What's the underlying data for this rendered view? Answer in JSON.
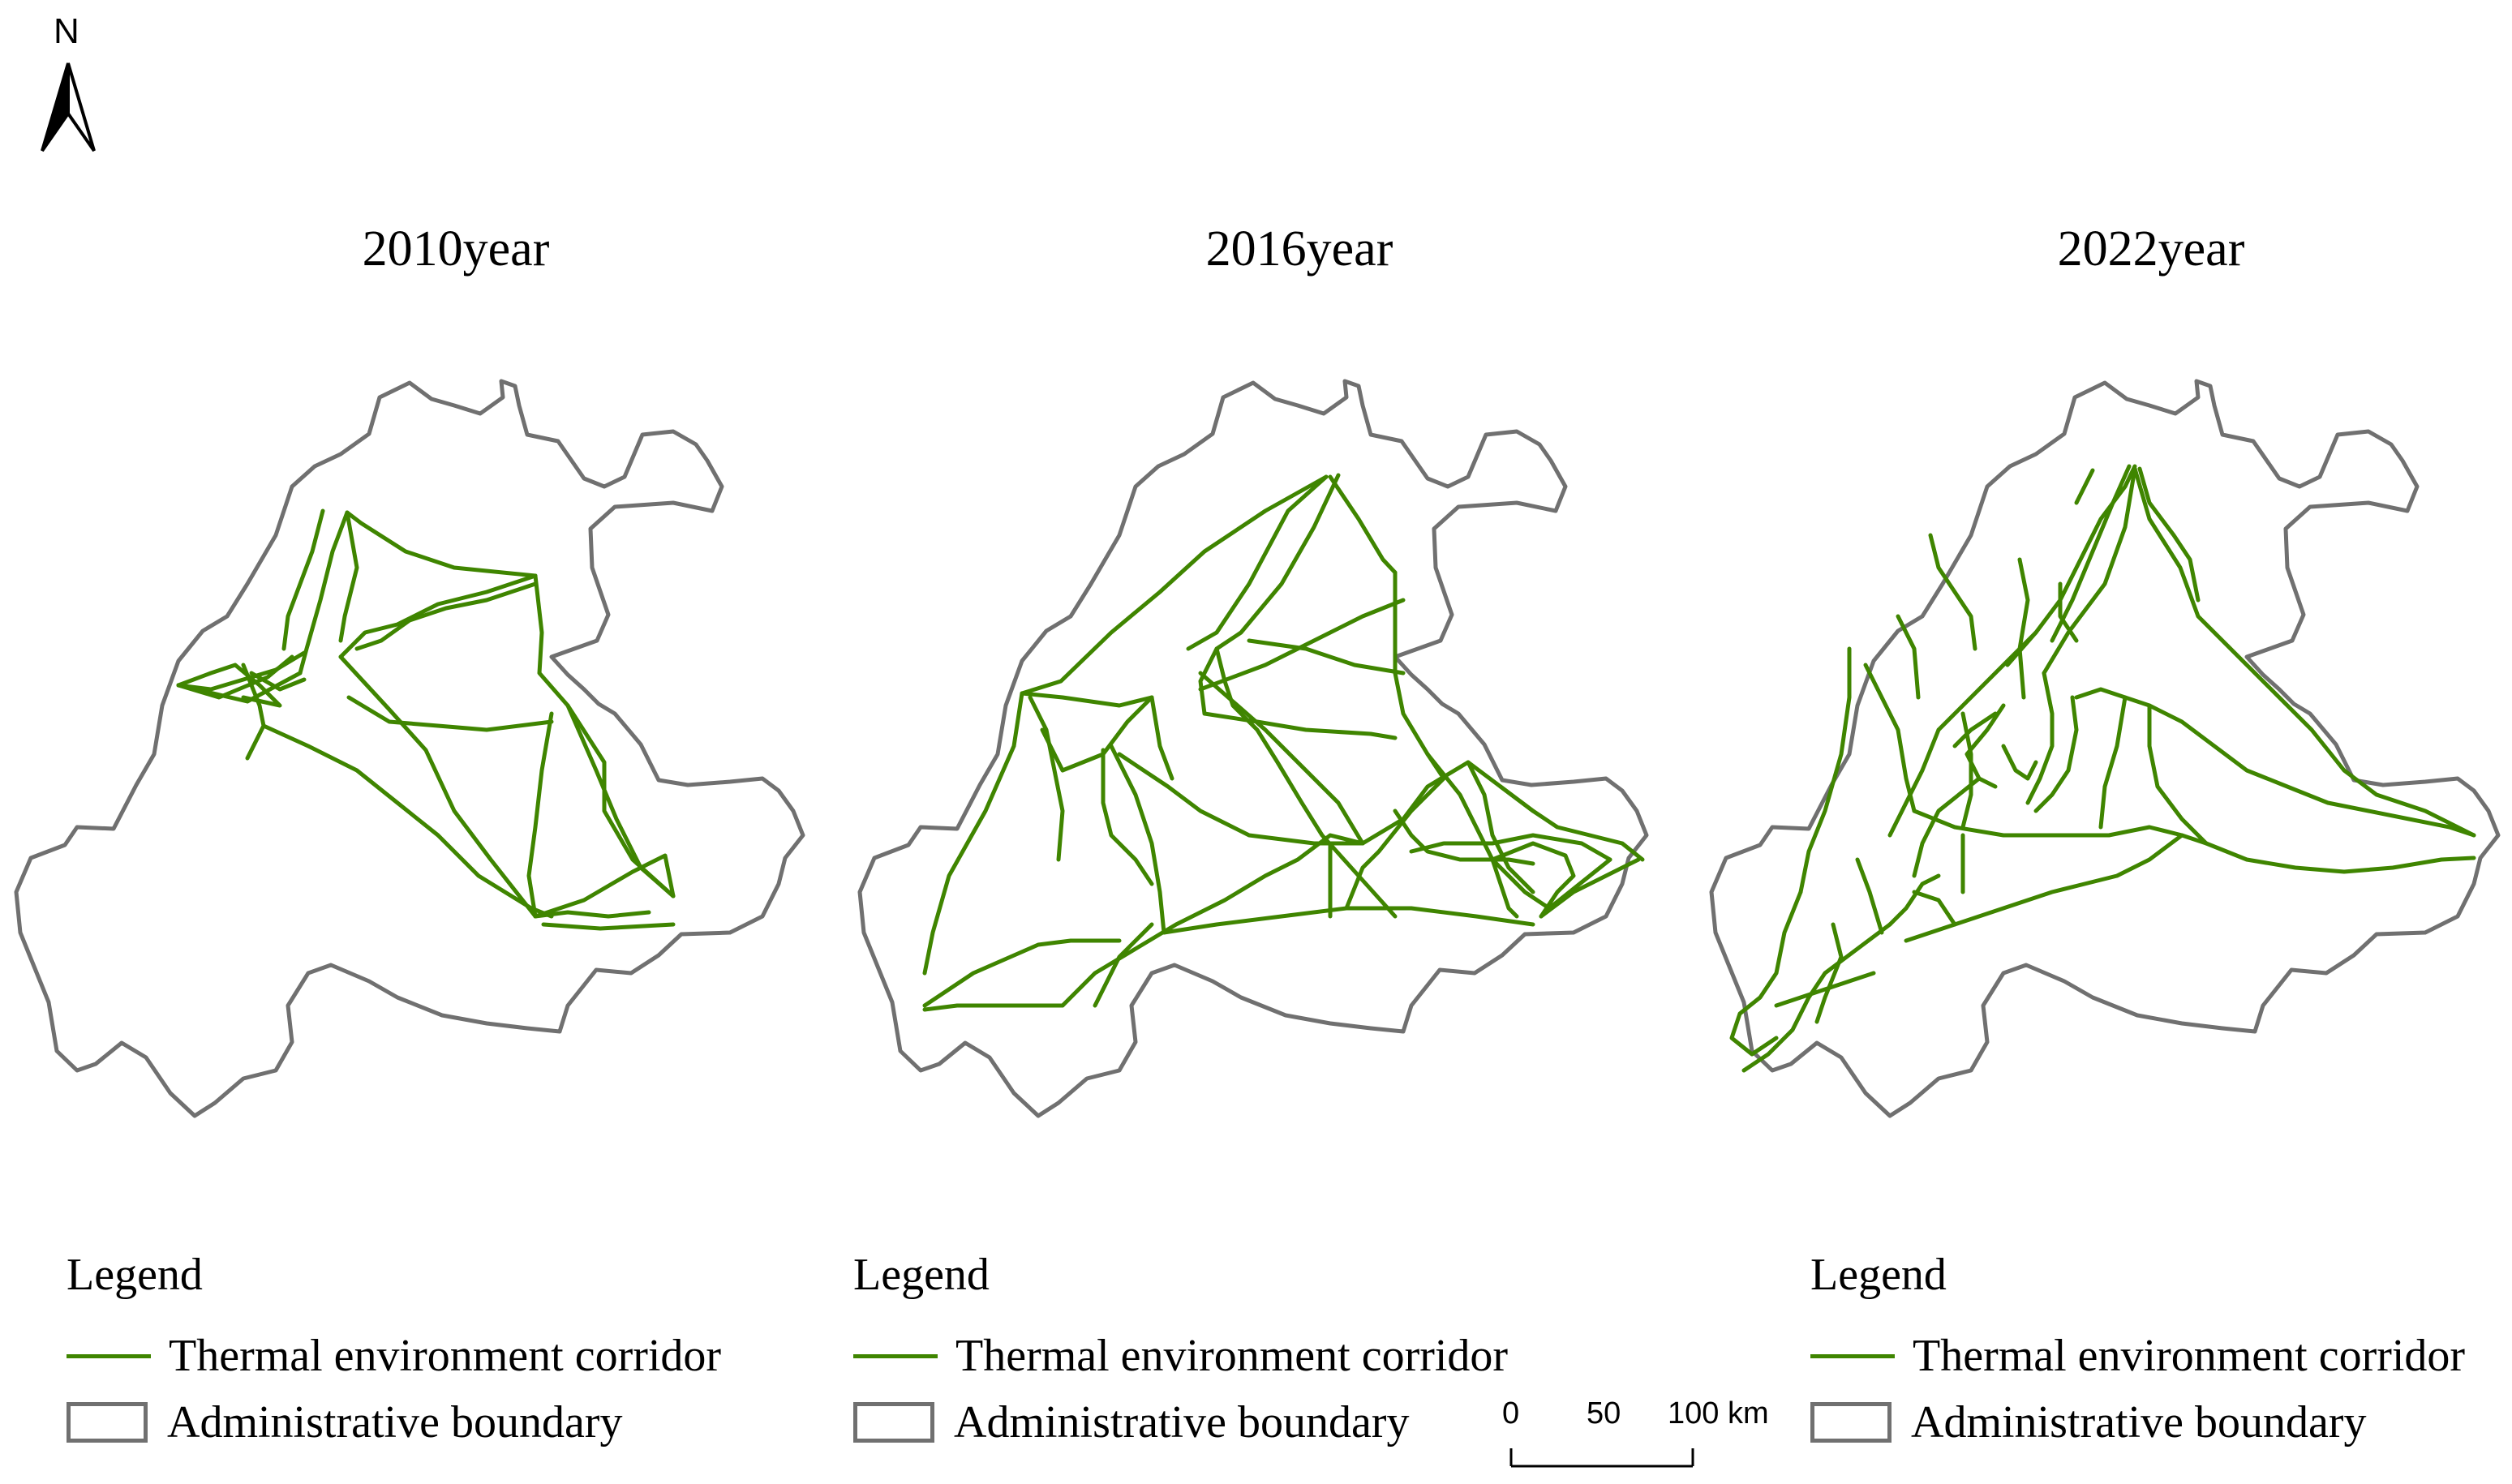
{
  "north_arrow": {
    "label": "N",
    "icon": "north-arrow-icon"
  },
  "panels": [
    {
      "title": "2010year"
    },
    {
      "title": "2016year"
    },
    {
      "title": "2022year"
    }
  ],
  "legend": {
    "title": "Legend",
    "corridor_label": "Thermal environment corridor",
    "boundary_label": "Administrative boundary"
  },
  "scale_bar": {
    "labels": [
      "0",
      "50",
      "100 km"
    ]
  },
  "colors": {
    "corridor": "#3f8500",
    "boundary": "#707070"
  }
}
